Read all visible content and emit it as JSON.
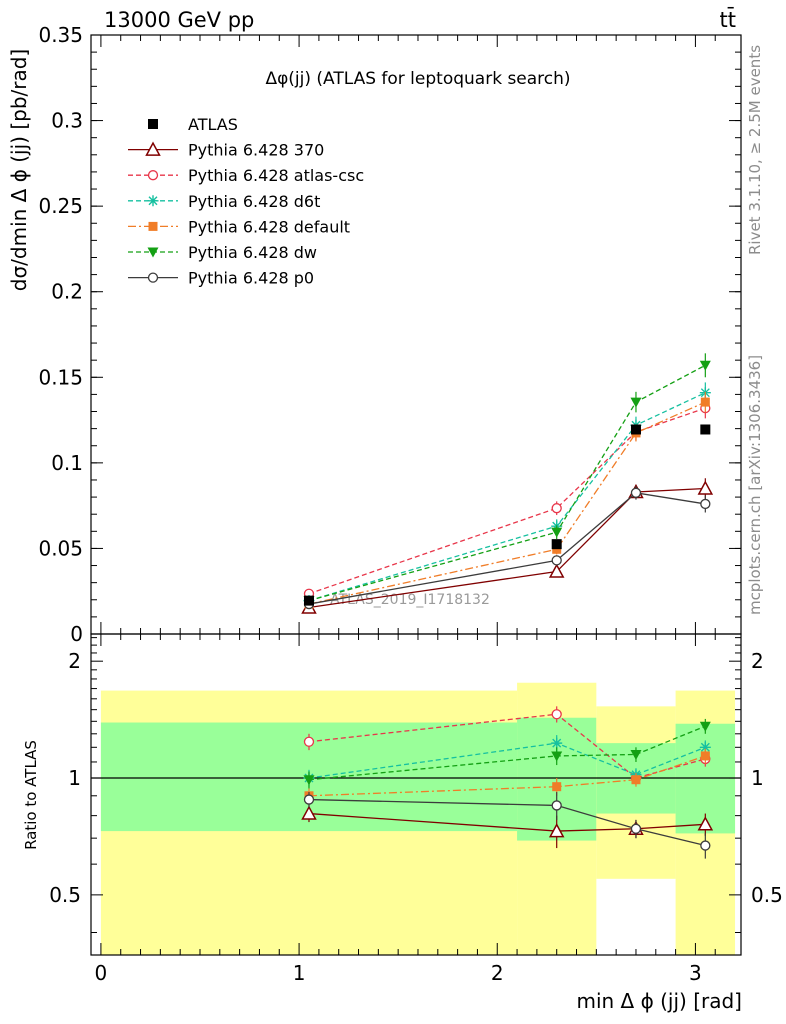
{
  "header": {
    "energy": "13000 GeV pp",
    "process": "tt̄"
  },
  "side_labels": {
    "rivet": "Rivet 3.1.10, ≥ 2.5M events",
    "mcplots": "mcplots.cern.ch [arXiv:1306.3436]"
  },
  "chart_data": [
    {
      "type": "line",
      "panel": "main",
      "title": "Δφ(jj) (ATLAS for leptoquark search)",
      "watermark": "ATLAS_2019_I1718132",
      "xlabel": "min Δ ϕ (jj) [rad]",
      "ylabel": "dσ/dmin Δ ϕ (jj) [pb/rad]",
      "xlim": [
        -0.05,
        3.23
      ],
      "ylim": [
        0,
        0.35
      ],
      "yticks": [
        {
          "v": 0,
          "label": "0"
        },
        {
          "v": 0.05,
          "label": "0.05"
        },
        {
          "v": 0.1,
          "label": "0.1"
        },
        {
          "v": 0.15,
          "label": "0.15"
        },
        {
          "v": 0.2,
          "label": "0.2"
        },
        {
          "v": 0.25,
          "label": "0.25"
        },
        {
          "v": 0.3,
          "label": "0.3"
        },
        {
          "v": 0.35,
          "label": "0.35"
        }
      ],
      "legend_position": "top-left",
      "data": {
        "name": "ATLAS",
        "x": [
          1.05,
          2.3,
          2.7,
          3.05
        ],
        "y": [
          0.0195,
          0.0525,
          0.1195,
          0.1195
        ],
        "color": "#000000"
      },
      "series": [
        {
          "name": "Pythia 6.428 370",
          "color": "#800000",
          "marker": "open-triangle",
          "dash": "none",
          "x": [
            1.05,
            2.3,
            2.7,
            3.05
          ],
          "y": [
            0.0155,
            0.0365,
            0.083,
            0.085
          ],
          "err": [
            0.002,
            0.003,
            0.004,
            0.006
          ]
        },
        {
          "name": "Pythia 6.428 atlas-csc",
          "color": "#e8364a",
          "marker": "open-circle",
          "dash": "5,3",
          "x": [
            1.05,
            2.3,
            2.7,
            3.05
          ],
          "y": [
            0.0235,
            0.0735,
            0.118,
            0.132
          ],
          "err": [
            0.002,
            0.004,
            0.005,
            0.006
          ]
        },
        {
          "name": "Pythia 6.428 d6t",
          "color": "#16c0a0",
          "marker": "star",
          "dash": "5,3",
          "x": [
            1.05,
            2.3,
            2.7,
            3.05
          ],
          "y": [
            0.0195,
            0.063,
            0.122,
            0.141
          ],
          "err": [
            0.002,
            0.004,
            0.005,
            0.006
          ]
        },
        {
          "name": "Pythia 6.428 default",
          "color": "#f07d28",
          "marker": "square",
          "dash": "8,3,2,3",
          "x": [
            1.05,
            2.3,
            2.7,
            3.05
          ],
          "y": [
            0.0175,
            0.0495,
            0.1175,
            0.1355
          ],
          "err": [
            0.002,
            0.003,
            0.005,
            0.006
          ]
        },
        {
          "name": "Pythia 6.428 dw",
          "color": "#14a014",
          "marker": "down-triangle",
          "dash": "5,3",
          "x": [
            1.05,
            2.3,
            2.7,
            3.05
          ],
          "y": [
            0.0195,
            0.0595,
            0.1355,
            0.157
          ],
          "err": [
            0.002,
            0.004,
            0.006,
            0.007
          ]
        },
        {
          "name": "Pythia 6.428 p0",
          "color": "#3c3c3c",
          "marker": "open-circle",
          "dash": "none",
          "x": [
            1.05,
            2.3,
            2.7,
            3.05
          ],
          "y": [
            0.0175,
            0.043,
            0.0825,
            0.076
          ],
          "err": [
            0.002,
            0.003,
            0.004,
            0.005
          ]
        }
      ]
    },
    {
      "type": "line",
      "panel": "ratio",
      "xlabel": "min Δ ϕ (jj) [rad]",
      "ylabel": "Ratio to ATLAS",
      "xlim": [
        -0.05,
        3.23
      ],
      "ylim": [
        0.35,
        2.35
      ],
      "log_y": true,
      "xticks": [
        {
          "v": 0,
          "label": "0"
        },
        {
          "v": 1,
          "label": "1"
        },
        {
          "v": 2,
          "label": "2"
        },
        {
          "v": 3,
          "label": "3"
        }
      ],
      "yticks": [
        {
          "v": 0.5,
          "label": "0.5"
        },
        {
          "v": 1,
          "label": "1"
        },
        {
          "v": 2,
          "label": "2"
        }
      ],
      "bands": [
        {
          "x0": 0.0,
          "x1": 2.1,
          "stat_lo": 0.73,
          "stat_hi": 1.39,
          "tot_lo": 0.35,
          "tot_hi": 1.68
        },
        {
          "x0": 2.1,
          "x1": 2.5,
          "stat_lo": 0.69,
          "stat_hi": 1.43,
          "tot_lo": 0.35,
          "tot_hi": 1.76
        },
        {
          "x0": 2.5,
          "x1": 2.9,
          "stat_lo": 0.81,
          "stat_hi": 1.23,
          "tot_lo": 0.55,
          "tot_hi": 1.53
        },
        {
          "x0": 2.9,
          "x1": 3.2,
          "stat_lo": 0.72,
          "stat_hi": 1.38,
          "tot_lo": 0.35,
          "tot_hi": 1.68
        }
      ],
      "series": [
        {
          "name": "Pythia 6.428 370",
          "y": [
            0.81,
            0.73,
            0.74,
            0.76
          ],
          "err": [
            0.04,
            0.07,
            0.04,
            0.05
          ]
        },
        {
          "name": "Pythia 6.428 atlas-csc",
          "y": [
            1.24,
            1.46,
            1.0,
            1.12
          ],
          "err": [
            0.06,
            0.07,
            0.04,
            0.05
          ]
        },
        {
          "name": "Pythia 6.428 d6t",
          "y": [
            1.0,
            1.23,
            1.02,
            1.2
          ],
          "err": [
            0.05,
            0.06,
            0.04,
            0.05
          ]
        },
        {
          "name": "Pythia 6.428 default",
          "y": [
            0.9,
            0.95,
            0.99,
            1.14
          ],
          "err": [
            0.04,
            0.05,
            0.04,
            0.05
          ]
        },
        {
          "name": "Pythia 6.428 dw",
          "y": [
            0.99,
            1.14,
            1.15,
            1.36
          ],
          "err": [
            0.05,
            0.06,
            0.05,
            0.06
          ]
        },
        {
          "name": "Pythia 6.428 p0",
          "y": [
            0.88,
            0.85,
            0.74,
            0.67
          ],
          "err": [
            0.04,
            0.07,
            0.04,
            0.05
          ]
        }
      ]
    }
  ]
}
